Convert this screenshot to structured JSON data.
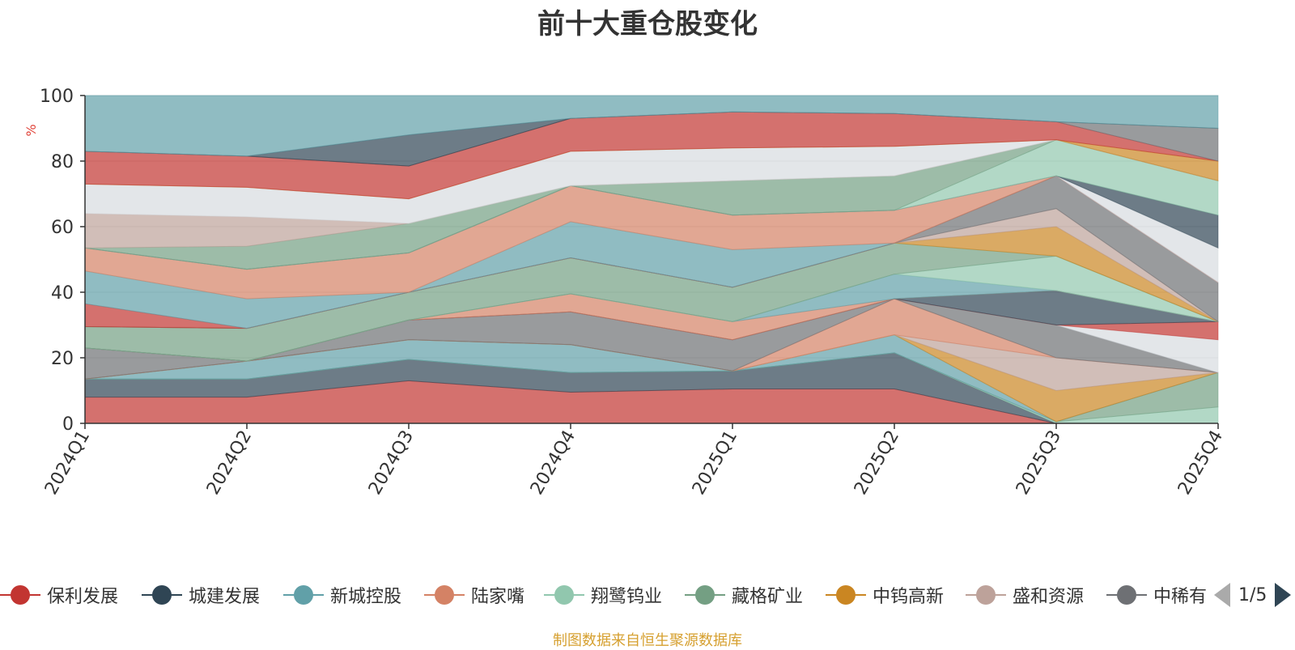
{
  "title": "前十大重仓股变化",
  "unit_label": "%",
  "source_note": "制图数据来自恒生聚源数据库",
  "pager": {
    "text": "1/5"
  },
  "legend_items": [
    {
      "name": "保利发展",
      "color": "#c23531"
    },
    {
      "name": "城建发展",
      "color": "#2f4554"
    },
    {
      "name": "新城控股",
      "color": "#61a0a8"
    },
    {
      "name": "陆家嘴",
      "color": "#d48265"
    },
    {
      "name": "翔鹭钨业",
      "color": "#91c7ae"
    },
    {
      "name": "藏格矿业",
      "color": "#749f83"
    },
    {
      "name": "中钨高新",
      "color": "#ca8622"
    },
    {
      "name": "盛和资源",
      "color": "#bda29a"
    },
    {
      "name": "中稀有色",
      "color": "#6e7074"
    }
  ],
  "chart_data": {
    "type": "area",
    "stacked": true,
    "title": "前十大重仓股变化",
    "ylabel": "%",
    "ylim": [
      0,
      100
    ],
    "yticks": [
      0,
      20,
      40,
      60,
      80,
      100
    ],
    "categories": [
      "2024Q1",
      "2024Q2",
      "2024Q3",
      "2024Q4",
      "2025Q1",
      "2025Q2",
      "2025Q3",
      "2025Q4"
    ],
    "bands": [
      {
        "color": "#c23531",
        "bounds": [
          [
            0,
            8
          ],
          [
            0,
            8
          ],
          [
            0,
            13
          ],
          [
            0,
            9.5
          ],
          [
            0,
            10.5
          ],
          [
            0,
            10.5
          ],
          [
            0,
            0
          ],
          [
            0,
            0
          ]
        ]
      },
      {
        "color": "#2f4554",
        "bounds": [
          [
            8,
            13.5
          ],
          [
            8,
            13.5
          ],
          [
            13,
            19.5
          ],
          [
            9.5,
            15.5
          ],
          [
            10.5,
            16
          ],
          [
            10.5,
            21.5
          ],
          [
            0,
            0
          ],
          [
            0,
            0
          ]
        ]
      },
      {
        "color": "#91c7ae",
        "bounds": [
          [
            13.5,
            13.5
          ],
          [
            13.5,
            13.5
          ],
          [
            19.5,
            19.5
          ],
          [
            15.5,
            15.5
          ],
          [
            16,
            16
          ],
          [
            21.5,
            21.5
          ],
          [
            0,
            0.5
          ],
          [
            0,
            5
          ]
        ]
      },
      {
        "color": "#749f83",
        "bounds": [
          [
            13.5,
            13.5
          ],
          [
            13.5,
            13.5
          ],
          [
            19.5,
            19.5
          ],
          [
            15.5,
            15.5
          ],
          [
            16,
            16
          ],
          [
            21.5,
            21.5
          ],
          [
            0.5,
            0.5
          ],
          [
            5,
            15.5
          ]
        ]
      },
      {
        "color": "#61a0a8",
        "bounds": [
          [
            13.5,
            13.5
          ],
          [
            13.5,
            19
          ],
          [
            19.5,
            25.5
          ],
          [
            15.5,
            24
          ],
          [
            16,
            16
          ],
          [
            21.5,
            27
          ],
          [
            0.5,
            0.5
          ],
          [
            15.5,
            15.5
          ]
        ]
      },
      {
        "color": "#ca8622",
        "bounds": [
          [
            13.5,
            13.5
          ],
          [
            19,
            19
          ],
          [
            25.5,
            25.5
          ],
          [
            24,
            24
          ],
          [
            16,
            16
          ],
          [
            27,
            27
          ],
          [
            0.5,
            10
          ],
          [
            15.5,
            15.5
          ]
        ]
      },
      {
        "color": "#bda29a",
        "bounds": [
          [
            13.5,
            13.5
          ],
          [
            19,
            19
          ],
          [
            25.5,
            25.5
          ],
          [
            24,
            24
          ],
          [
            16,
            16
          ],
          [
            27,
            27
          ],
          [
            10,
            20
          ],
          [
            15.5,
            15.5
          ]
        ]
      },
      {
        "color": "#d48265",
        "bounds": [
          [
            13.5,
            13.5
          ],
          [
            19,
            19
          ],
          [
            25.5,
            25.5
          ],
          [
            24,
            24
          ],
          [
            16,
            16
          ],
          [
            27,
            38
          ],
          [
            20,
            20
          ],
          [
            15.5,
            15.5
          ]
        ]
      },
      {
        "color": "#6e7074",
        "bounds": [
          [
            13.5,
            23
          ],
          [
            19,
            19
          ],
          [
            25.5,
            31.5
          ],
          [
            24,
            34
          ],
          [
            16,
            25.5
          ],
          [
            38,
            38
          ],
          [
            20,
            30
          ],
          [
            15.5,
            15.5
          ]
        ]
      },
      {
        "color": "#d7dbe0",
        "bounds": [
          [
            23,
            23
          ],
          [
            19,
            19
          ],
          [
            31.5,
            31.5
          ],
          [
            34,
            34
          ],
          [
            25.5,
            25.5
          ],
          [
            38,
            38
          ],
          [
            30,
            30
          ],
          [
            15.5,
            25.5
          ]
        ]
      },
      {
        "color": "#c23531",
        "bounds": [
          [
            23,
            23
          ],
          [
            19,
            19
          ],
          [
            31.5,
            31.5
          ],
          [
            34,
            34
          ],
          [
            25.5,
            25.5
          ],
          [
            38,
            38
          ],
          [
            30,
            30
          ],
          [
            25.5,
            31
          ]
        ]
      },
      {
        "color": "#2f4554",
        "bounds": [
          [
            23,
            23
          ],
          [
            19,
            19
          ],
          [
            31.5,
            31.5
          ],
          [
            34,
            34
          ],
          [
            25.5,
            25.5
          ],
          [
            38,
            38
          ],
          [
            30,
            40.5
          ],
          [
            31,
            31
          ]
        ]
      },
      {
        "color": "#d48265",
        "bounds": [
          [
            23,
            23
          ],
          [
            19,
            19
          ],
          [
            31.5,
            31.5
          ],
          [
            34,
            39.5
          ],
          [
            25.5,
            31
          ],
          [
            38,
            38
          ],
          [
            40.5,
            40.5
          ],
          [
            31,
            31
          ]
        ]
      },
      {
        "color": "#61a0a8",
        "bounds": [
          [
            23,
            23
          ],
          [
            19,
            19
          ],
          [
            31.5,
            31.5
          ],
          [
            39.5,
            39.5
          ],
          [
            31,
            31
          ],
          [
            38,
            45.5
          ],
          [
            40.5,
            40.5
          ],
          [
            31,
            31
          ]
        ]
      },
      {
        "color": "#91c7ae",
        "bounds": [
          [
            23,
            23
          ],
          [
            19,
            19
          ],
          [
            31.5,
            31.5
          ],
          [
            39.5,
            39.5
          ],
          [
            31,
            31
          ],
          [
            45.5,
            45.5
          ],
          [
            40.5,
            51
          ],
          [
            31,
            31
          ]
        ]
      },
      {
        "color": "#749f83",
        "bounds": [
          [
            23,
            29.5
          ],
          [
            19,
            29
          ],
          [
            31.5,
            40
          ],
          [
            39.5,
            50.5
          ],
          [
            31,
            41.5
          ],
          [
            45.5,
            55
          ],
          [
            51,
            51
          ],
          [
            31,
            31
          ]
        ]
      },
      {
        "color": "#ca8622",
        "bounds": [
          [
            29.5,
            29.5
          ],
          [
            29,
            29
          ],
          [
            40,
            40
          ],
          [
            50.5,
            50.5
          ],
          [
            41.5,
            41.5
          ],
          [
            55,
            55
          ],
          [
            51,
            60
          ],
          [
            31,
            31
          ]
        ]
      },
      {
        "color": "#bda29a",
        "bounds": [
          [
            29.5,
            29.5
          ],
          [
            29,
            29
          ],
          [
            40,
            40
          ],
          [
            50.5,
            50.5
          ],
          [
            41.5,
            41.5
          ],
          [
            55,
            55
          ],
          [
            60,
            65.5
          ],
          [
            31,
            31
          ]
        ]
      },
      {
        "color": "#6e7074",
        "bounds": [
          [
            29.5,
            29.5
          ],
          [
            29,
            29
          ],
          [
            40,
            40
          ],
          [
            50.5,
            50.5
          ],
          [
            41.5,
            41.5
          ],
          [
            55,
            55
          ],
          [
            65.5,
            75.5
          ],
          [
            31,
            43
          ]
        ]
      },
      {
        "color": "#c23531",
        "bounds": [
          [
            29.5,
            36.5
          ],
          [
            29,
            29
          ],
          [
            40,
            40
          ],
          [
            50.5,
            50.5
          ],
          [
            41.5,
            41.5
          ],
          [
            55,
            55
          ],
          [
            75.5,
            75.5
          ],
          [
            43,
            43
          ]
        ]
      },
      {
        "color": "#61a0a8",
        "bounds": [
          [
            36.5,
            46.5
          ],
          [
            29,
            38
          ],
          [
            40,
            40
          ],
          [
            50.5,
            61.5
          ],
          [
            41.5,
            53
          ],
          [
            55,
            55
          ],
          [
            75.5,
            75.5
          ],
          [
            43,
            43
          ]
        ]
      },
      {
        "color": "#d48265",
        "bounds": [
          [
            46.5,
            53.5
          ],
          [
            38,
            47
          ],
          [
            40,
            52
          ],
          [
            61.5,
            72.5
          ],
          [
            53,
            63.5
          ],
          [
            55,
            65
          ],
          [
            75.5,
            75.5
          ],
          [
            43,
            43
          ]
        ]
      },
      {
        "color": "#d7dbe0",
        "bounds": [
          [
            53.5,
            53.5
          ],
          [
            47,
            47
          ],
          [
            52,
            52
          ],
          [
            72.5,
            72.5
          ],
          [
            63.5,
            63.5
          ],
          [
            65,
            65
          ],
          [
            75.5,
            75.5
          ],
          [
            43,
            53.5
          ]
        ]
      },
      {
        "color": "#2f4554",
        "bounds": [
          [
            53.5,
            53.5
          ],
          [
            47,
            47
          ],
          [
            52,
            52
          ],
          [
            72.5,
            72.5
          ],
          [
            63.5,
            63.5
          ],
          [
            65,
            65
          ],
          [
            75.5,
            75.5
          ],
          [
            53.5,
            63.5
          ]
        ]
      },
      {
        "color": "#91c7ae",
        "bounds": [
          [
            53.5,
            53.5
          ],
          [
            47,
            47
          ],
          [
            52,
            52
          ],
          [
            72.5,
            72.5
          ],
          [
            63.5,
            63.5
          ],
          [
            65,
            65
          ],
          [
            75.5,
            86.5
          ],
          [
            63.5,
            74
          ]
        ]
      },
      {
        "color": "#749f83",
        "bounds": [
          [
            53.5,
            53.5
          ],
          [
            47,
            54
          ],
          [
            52,
            61
          ],
          [
            72.5,
            72.5
          ],
          [
            63.5,
            74
          ],
          [
            65,
            75.5
          ],
          [
            86.5,
            86.5
          ],
          [
            74,
            74
          ]
        ]
      },
      {
        "color": "#bda29a",
        "bounds": [
          [
            53.5,
            64
          ],
          [
            54,
            63
          ],
          [
            61,
            61
          ],
          [
            72.5,
            72.5
          ],
          [
            74,
            74
          ],
          [
            75.5,
            75.5
          ],
          [
            86.5,
            86.5
          ],
          [
            74,
            74
          ]
        ]
      },
      {
        "color": "#d7dbe0",
        "bounds": [
          [
            64,
            73
          ],
          [
            63,
            72
          ],
          [
            61,
            68.5
          ],
          [
            72.5,
            83
          ],
          [
            74,
            84
          ],
          [
            75.5,
            84.5
          ],
          [
            86.5,
            86.5
          ],
          [
            74,
            74
          ]
        ]
      },
      {
        "color": "#ca8622",
        "bounds": [
          [
            73,
            73
          ],
          [
            72,
            72
          ],
          [
            68.5,
            68.5
          ],
          [
            83,
            83
          ],
          [
            84,
            84
          ],
          [
            84.5,
            84.5
          ],
          [
            86.5,
            86.5
          ],
          [
            74,
            80
          ]
        ]
      },
      {
        "color": "#c23531",
        "bounds": [
          [
            73,
            83
          ],
          [
            72,
            81.5
          ],
          [
            68.5,
            78.5
          ],
          [
            83,
            93
          ],
          [
            84,
            95
          ],
          [
            84.5,
            94.5
          ],
          [
            86.5,
            92
          ],
          [
            80,
            80
          ]
        ]
      },
      {
        "color": "#6e7074",
        "bounds": [
          [
            83,
            83
          ],
          [
            81.5,
            81.5
          ],
          [
            78.5,
            78.5
          ],
          [
            93,
            93
          ],
          [
            95,
            95
          ],
          [
            94.5,
            94.5
          ],
          [
            92,
            92
          ],
          [
            80,
            90
          ]
        ]
      },
      {
        "color": "#2f4554",
        "bounds": [
          [
            83,
            83
          ],
          [
            81.5,
            81.5
          ],
          [
            78.5,
            88
          ],
          [
            93,
            93
          ],
          [
            95,
            95
          ],
          [
            94.5,
            94.5
          ],
          [
            92,
            92
          ],
          [
            90,
            90
          ]
        ]
      },
      {
        "color": "#61a0a8",
        "bounds": [
          [
            83,
            100
          ],
          [
            81.5,
            100
          ],
          [
            88,
            100
          ],
          [
            93,
            100
          ],
          [
            95,
            100
          ],
          [
            94.5,
            100
          ],
          [
            92,
            100
          ],
          [
            90,
            100
          ]
        ]
      }
    ]
  }
}
